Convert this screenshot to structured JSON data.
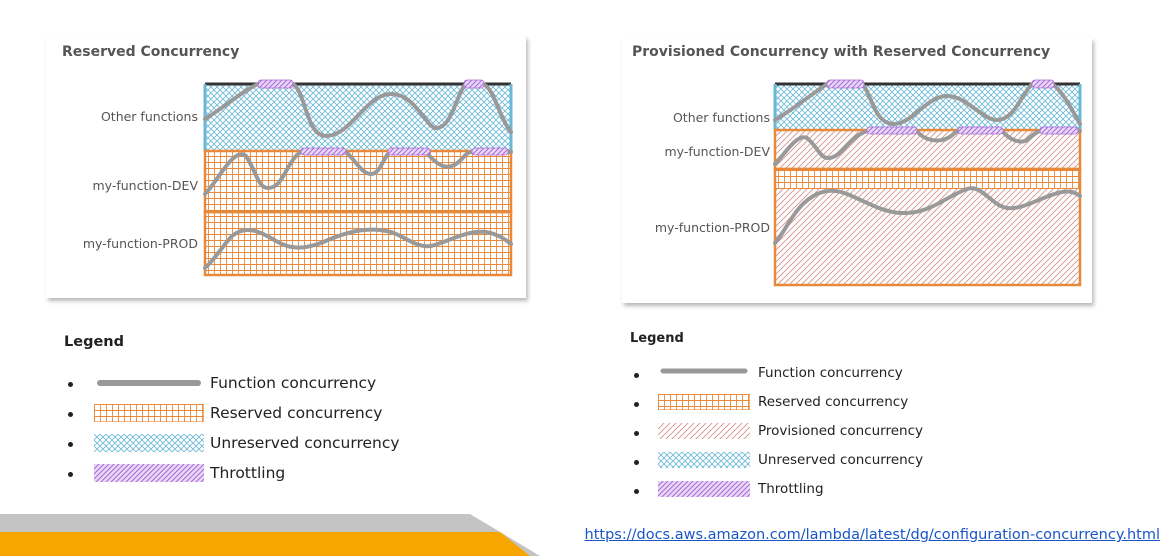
{
  "left_panel": {
    "title": "Reserved Concurrency",
    "rows": [
      "Other functions",
      "my-function-DEV",
      "my-function-PROD"
    ]
  },
  "right_panel": {
    "title": "Provisioned Concurrency with Reserved Concurrency",
    "rows": [
      "Other functions",
      "my-function-DEV",
      "my-function-PROD"
    ]
  },
  "legend_left": {
    "title": "Legend",
    "items": [
      {
        "label": "Function concurrency",
        "icon": "function-concurrency-swatch"
      },
      {
        "label": "Reserved concurrency",
        "icon": "reserved-concurrency-swatch"
      },
      {
        "label": "Unreserved concurrency",
        "icon": "unreserved-concurrency-swatch"
      },
      {
        "label": "Throttling",
        "icon": "throttling-swatch"
      }
    ]
  },
  "legend_right": {
    "title": "Legend",
    "items": [
      {
        "label": "Function concurrency",
        "icon": "function-concurrency-swatch"
      },
      {
        "label": "Reserved concurrency",
        "icon": "reserved-concurrency-swatch"
      },
      {
        "label": "Provisioned concurrency",
        "icon": "provisioned-concurrency-swatch"
      },
      {
        "label": "Unreserved concurrency",
        "icon": "unreserved-concurrency-swatch"
      },
      {
        "label": "Throttling",
        "icon": "throttling-swatch"
      }
    ]
  },
  "source_link": "https://docs.aws.amazon.com/lambda/latest/dg/configuration-concurrency.html",
  "colors": {
    "reserved": "#e8883a",
    "unreserved": "#6ab8d6",
    "provisioned": "#d4938a",
    "throttling": "#b57be0",
    "function_line": "#999999",
    "footer_orange": "#f7a600",
    "footer_gray": "#c4c4c4"
  }
}
